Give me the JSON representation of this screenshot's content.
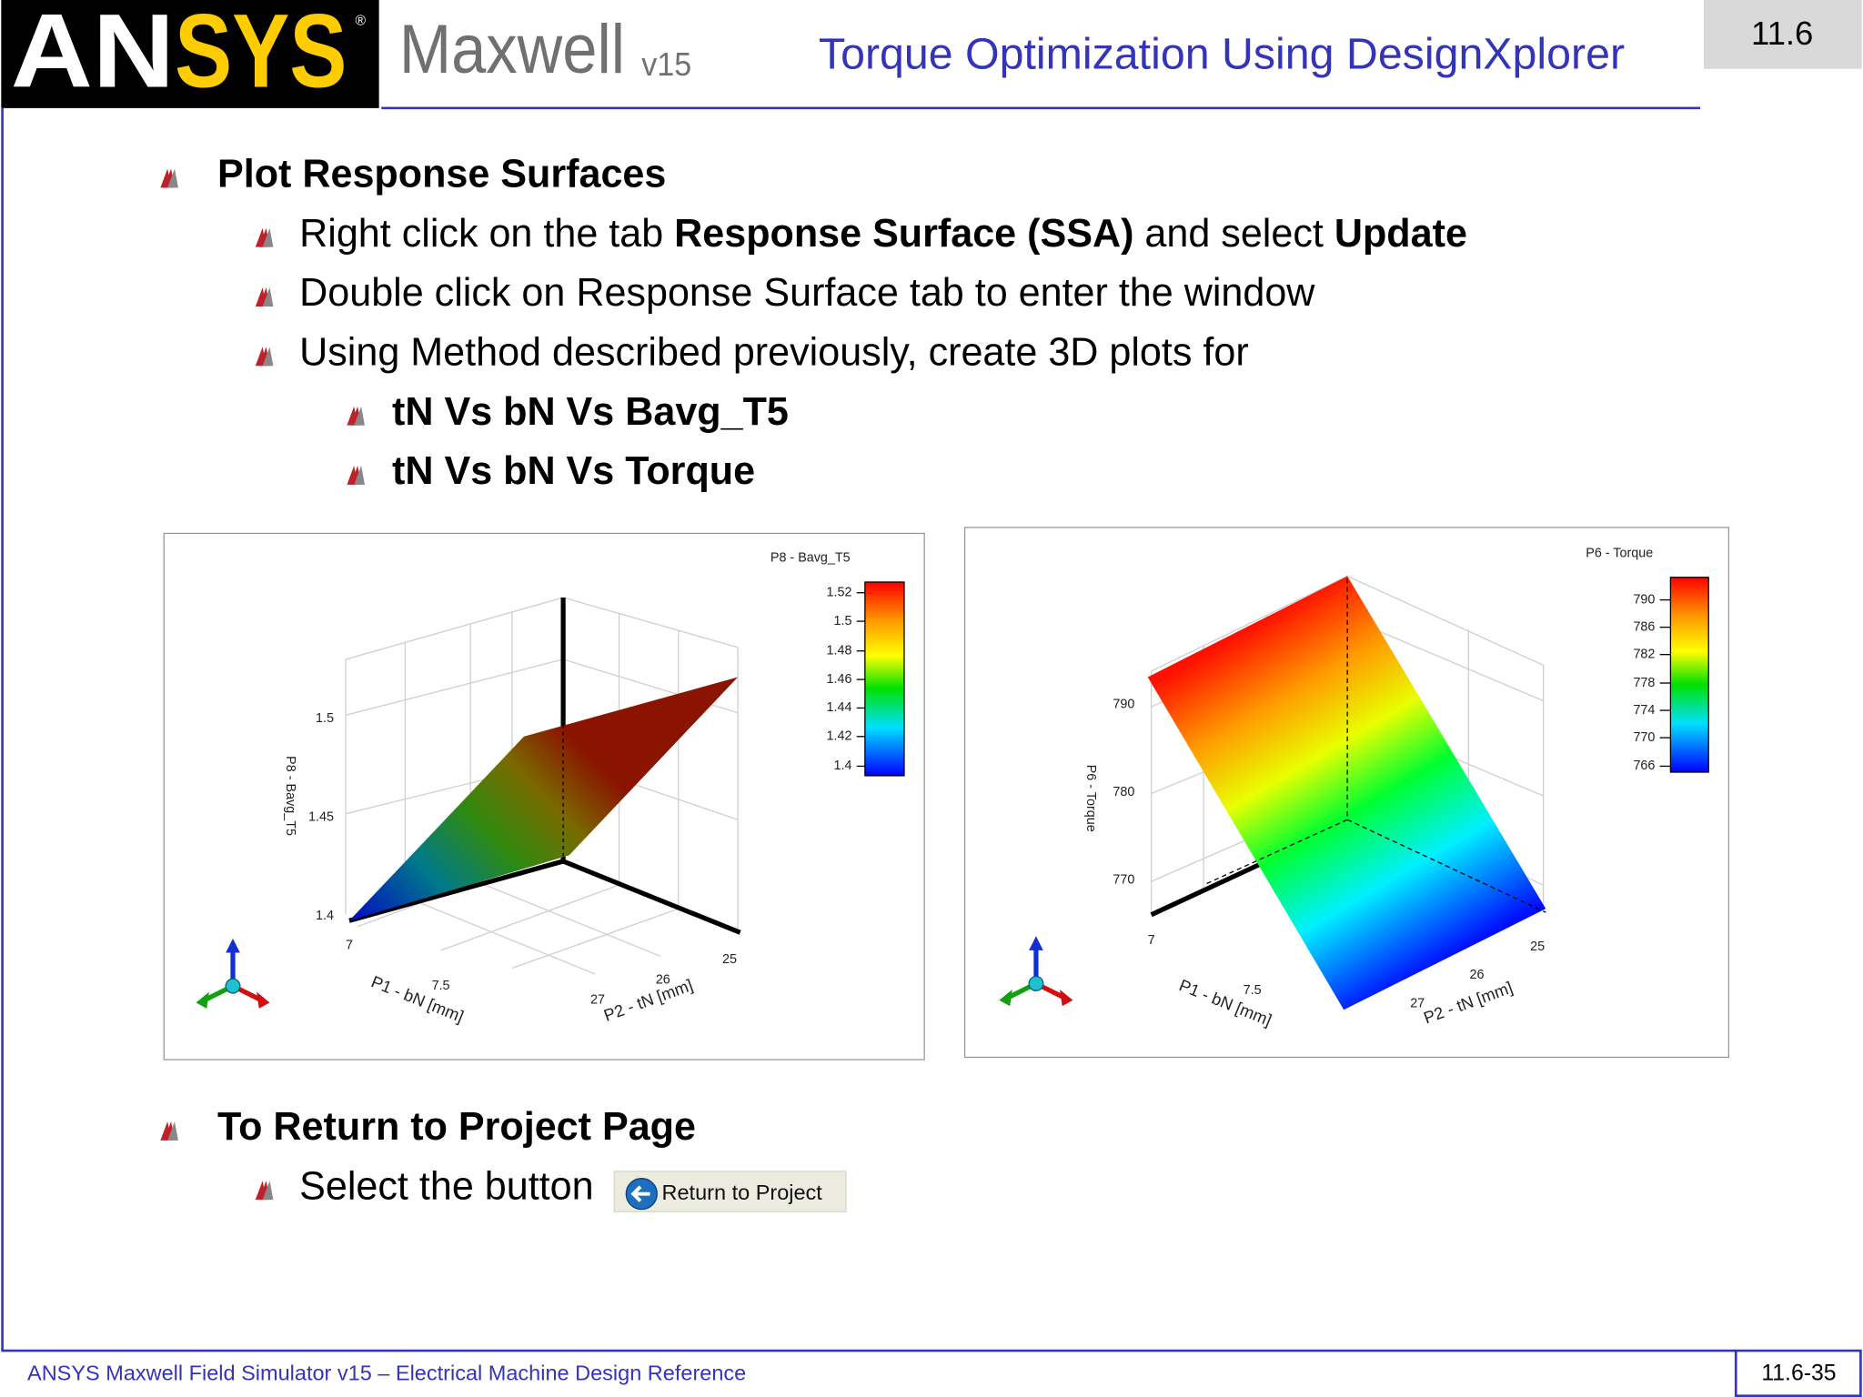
{
  "header": {
    "logo": [
      "AN",
      "SYS",
      "®"
    ],
    "product": "Maxwell",
    "version": "v15",
    "title": "Torque Optimization Using DesignXplorer",
    "section": "11.6"
  },
  "sections": [
    {
      "bullets": [
        {
          "level": 1,
          "runs": [
            {
              "text": "Plot Response Surfaces",
              "bold": true
            }
          ]
        },
        {
          "level": 2,
          "runs": [
            {
              "text": "Right click on the tab ",
              "bold": false
            },
            {
              "text": "Response Surface (SSA)",
              "bold": true
            },
            {
              "text": " and select ",
              "bold": false
            },
            {
              "text": "Update",
              "bold": true
            }
          ]
        },
        {
          "level": 2,
          "runs": [
            {
              "text": "Double click on Response Surface tab to enter the window",
              "bold": false
            }
          ]
        },
        {
          "level": 2,
          "runs": [
            {
              "text": "Using Method described previously, create 3D plots for",
              "bold": false
            }
          ]
        },
        {
          "level": 3,
          "runs": [
            {
              "text": "tN Vs bN Vs Bavg_T5",
              "bold": true
            }
          ]
        },
        {
          "level": 3,
          "runs": [
            {
              "text": "tN Vs bN Vs Torque",
              "bold": true
            }
          ]
        }
      ]
    },
    {
      "bullets": [
        {
          "level": 1,
          "runs": [
            {
              "text": "To Return to Project Page",
              "bold": true
            }
          ]
        },
        {
          "level": 2,
          "runs": [
            {
              "text": "Select the button",
              "bold": false
            }
          ]
        }
      ]
    }
  ],
  "button": "Return to Project",
  "plots": [
    {
      "legend_title": "P8 - Bavg_T5",
      "colorbar_ticks": [
        "1.52",
        "1.5",
        "1.48",
        "1.46",
        "1.44",
        "1.42",
        "1.4"
      ],
      "z_label": "P8 - Bavg_T5",
      "z_ticks": [
        "1.5",
        "1.45",
        "1.4"
      ],
      "x_label": "P1 - bN [mm]",
      "x_ticks": [
        "7",
        "7.5"
      ],
      "y_label": "P2 - tN [mm]",
      "y_ticks": [
        "27",
        "26",
        "25"
      ]
    },
    {
      "legend_title": "P6 - Torque",
      "colorbar_ticks": [
        "790",
        "786",
        "782",
        "778",
        "774",
        "770",
        "766"
      ],
      "z_label": "P6 - Torque",
      "z_ticks": [
        "790",
        "780",
        "770"
      ],
      "x_label": "P1 - bN [mm]",
      "x_ticks": [
        "7",
        "7.5"
      ],
      "y_label": "P2 - tN [mm]",
      "y_ticks": [
        "27",
        "26",
        "25"
      ]
    }
  ],
  "footer": {
    "text": "ANSYS Maxwell Field Simulator v15 – Electrical Machine Design Reference",
    "page": "11.6-35"
  }
}
